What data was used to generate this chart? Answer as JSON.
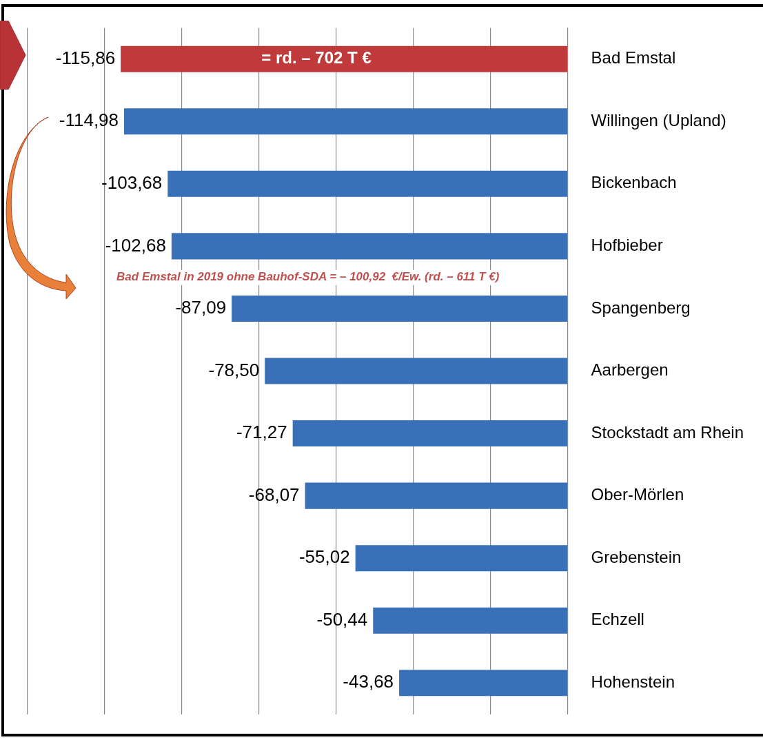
{
  "chart_data": {
    "type": "bar",
    "orientation": "horizontal",
    "categories": [
      "Bad Emstal",
      "Willingen (Upland)",
      "Bickenbach",
      "Hofbieber",
      "Spangenberg",
      "Aarbergen",
      "Stockstadt am Rhein",
      "Ober-Mörlen",
      "Grebenstein",
      "Echzell",
      "Hohenstein"
    ],
    "values": [
      -115.86,
      -114.98,
      -103.68,
      -102.68,
      -87.09,
      -78.5,
      -71.27,
      -68.07,
      -55.02,
      -50.44,
      -43.68
    ],
    "colors": [
      "#c0393b",
      "#3a70b8",
      "#3a70b8",
      "#3a70b8",
      "#3a70b8",
      "#3a70b8",
      "#3a70b8",
      "#3a70b8",
      "#3a70b8",
      "#3a70b8",
      "#3a70b8"
    ],
    "value_labels": [
      "-115,86",
      "-114,98",
      "-103,68",
      "-102,68",
      "-87,09",
      "-78,50",
      "-71,27",
      "-68,07",
      "-55,02",
      "-50,44",
      "-43,68"
    ],
    "xlim": [
      -140,
      0
    ],
    "xticks": [
      {
        "value": -140,
        "label": null
      },
      {
        "value": -120,
        "label": null
      },
      {
        "value": -100,
        "label": null
      },
      {
        "value": -80,
        "label": null
      },
      {
        "value": -60,
        "label": null
      },
      {
        "value": -40,
        "label": null
      },
      {
        "value": -20,
        "label": null
      },
      {
        "value": 0,
        "label": null
      }
    ],
    "grid": "x",
    "tick_labels": "y",
    "legend": false,
    "annotations": [
      "= rd. – 702 T €",
      "Bad Emstal in 2019 ohne Bauhof-SDA = – 100,92  €/Ew. (rd. – 611 T €)"
    ]
  }
}
